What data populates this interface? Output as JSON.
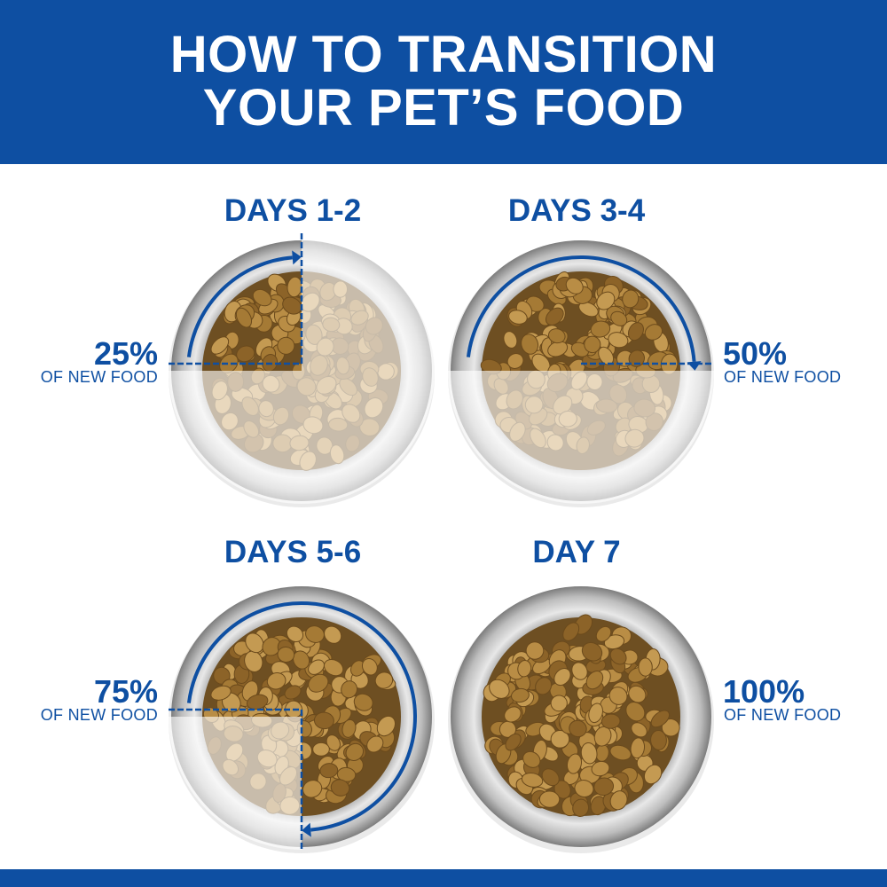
{
  "header": {
    "title_line1": "HOW TO TRANSITION",
    "title_line2": "YOUR PET’S FOOD"
  },
  "colors": {
    "brand_blue": "#0e4fa2",
    "new_food": "#9a6f2e",
    "old_food_faded": "#d9cdb8"
  },
  "stages": [
    {
      "title": "DAYS 1-2",
      "percent": "25%",
      "caption": "OF NEW FOOD",
      "new_food_fraction": 0.25
    },
    {
      "title": "DAYS 3-4",
      "percent": "50%",
      "caption": "OF NEW FOOD",
      "new_food_fraction": 0.5
    },
    {
      "title": "DAYS 5-6",
      "percent": "75%",
      "caption": "OF NEW FOOD",
      "new_food_fraction": 0.75
    },
    {
      "title": "DAY 7",
      "percent": "100%",
      "caption": "OF  NEW FOOD",
      "new_food_fraction": 1.0
    }
  ]
}
